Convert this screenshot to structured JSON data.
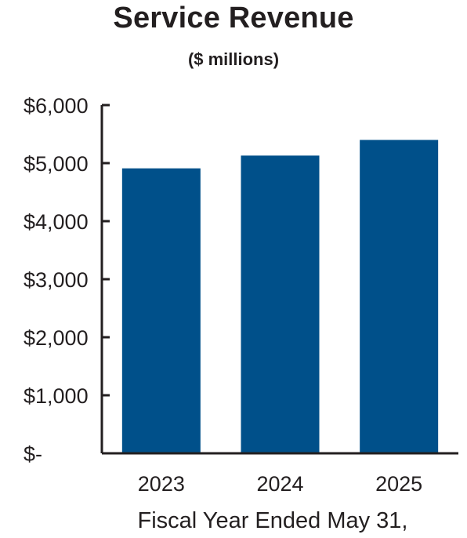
{
  "chart_data": {
    "type": "bar",
    "title": "Service Revenue",
    "subtitle": "($ millions)",
    "xlabel": "Fiscal Year Ended May 31,",
    "ylabel": "",
    "categories": [
      "2023",
      "2024",
      "2025"
    ],
    "values": [
      4910,
      5130,
      5400
    ],
    "ylim": [
      0,
      6000
    ],
    "yticks": [
      {
        "value": 0,
        "label": "$-"
      },
      {
        "value": 1000,
        "label": "$1,000"
      },
      {
        "value": 2000,
        "label": "$2,000"
      },
      {
        "value": 3000,
        "label": "$3,000"
      },
      {
        "value": 4000,
        "label": "$4,000"
      },
      {
        "value": 5000,
        "label": "$5,000"
      },
      {
        "value": 6000,
        "label": "$6,000"
      }
    ],
    "grid": false,
    "legend": "none",
    "bar_color": "#00508a",
    "axis_color": "#231f20"
  }
}
